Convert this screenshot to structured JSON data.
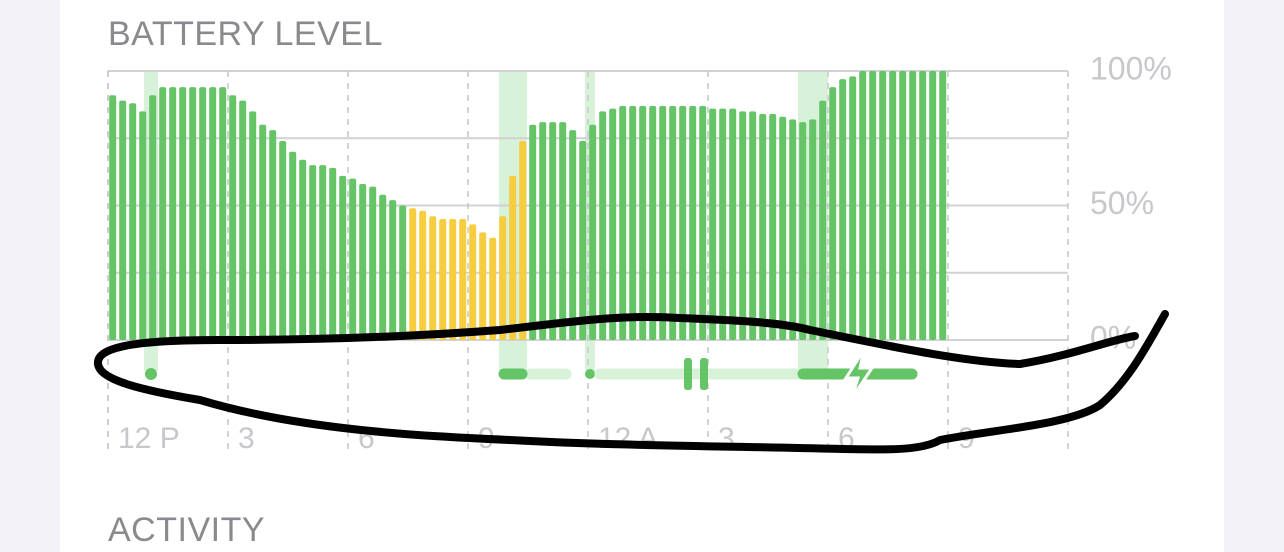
{
  "chart_data": {
    "type": "bar",
    "title": "BATTERY LEVEL",
    "next_section": "ACTIVITY",
    "x": [
      0,
      1,
      2,
      3,
      4,
      5,
      6,
      7,
      8,
      9,
      10,
      11,
      12,
      13,
      14,
      15,
      16,
      17,
      18,
      19,
      20,
      21,
      22,
      23,
      24,
      25,
      26,
      27,
      28,
      29,
      30,
      31,
      32,
      33,
      34,
      35,
      36,
      37,
      38,
      39,
      40,
      41,
      42,
      43,
      44,
      45,
      46,
      47,
      48,
      49,
      50,
      51,
      52,
      53,
      54,
      55,
      56,
      57,
      58,
      59,
      60,
      61,
      62,
      63,
      64,
      65,
      66,
      67,
      68,
      69,
      70,
      71,
      72,
      73,
      74,
      75,
      76,
      77,
      78,
      79,
      80,
      81,
      82,
      83
    ],
    "values": [
      91,
      89,
      88,
      85,
      91,
      94,
      94,
      94,
      94,
      94,
      94,
      94,
      91,
      89,
      85,
      80,
      78,
      74,
      70,
      67,
      65,
      65,
      64,
      61,
      60,
      58,
      57,
      54,
      52,
      50,
      49,
      48,
      46,
      45,
      45,
      45,
      43,
      40,
      38,
      46,
      61,
      74,
      80,
      81,
      81,
      81,
      78,
      74,
      80,
      85,
      86,
      87,
      87,
      87,
      87,
      87,
      87,
      87,
      87,
      87,
      86,
      86,
      86,
      85,
      85,
      84,
      84,
      83,
      82,
      81,
      82,
      89,
      94,
      97,
      98,
      100,
      100,
      100,
      100,
      100,
      100,
      100,
      100,
      100
    ],
    "colors": [
      "#65c466",
      "#65c466",
      "#65c466",
      "#65c466",
      "#65c466",
      "#65c466",
      "#65c466",
      "#65c466",
      "#65c466",
      "#65c466",
      "#65c466",
      "#65c466",
      "#65c466",
      "#65c466",
      "#65c466",
      "#65c466",
      "#65c466",
      "#65c466",
      "#65c466",
      "#65c466",
      "#65c466",
      "#65c466",
      "#65c466",
      "#65c466",
      "#65c466",
      "#65c466",
      "#65c466",
      "#65c466",
      "#65c466",
      "#65c466",
      "#f6cd3e",
      "#f6cd3e",
      "#f6cd3e",
      "#f6cd3e",
      "#f6cd3e",
      "#f6cd3e",
      "#f6cd3e",
      "#f6cd3e",
      "#f6cd3e",
      "#f6cd3e",
      "#f6cd3e",
      "#f6cd3e",
      "#65c466",
      "#65c466",
      "#65c466",
      "#65c466",
      "#65c466",
      "#65c466",
      "#65c466",
      "#65c466",
      "#65c466",
      "#65c466",
      "#65c466",
      "#65c466",
      "#65c466",
      "#65c466",
      "#65c466",
      "#65c466",
      "#65c466",
      "#65c466",
      "#65c466",
      "#65c466",
      "#65c466",
      "#65c466",
      "#65c466",
      "#65c466",
      "#65c466",
      "#65c466",
      "#65c466",
      "#65c466",
      "#65c466",
      "#65c466",
      "#65c466",
      "#65c466",
      "#65c466",
      "#65c466",
      "#65c466",
      "#65c466",
      "#65c466",
      "#65c466",
      "#65c466",
      "#65c466",
      "#65c466",
      "#65c466"
    ],
    "xlim": [
      0,
      96
    ],
    "xticks": [
      {
        "value": 0,
        "label": "12 P"
      },
      {
        "value": 12,
        "label": "3"
      },
      {
        "value": 24,
        "label": "6"
      },
      {
        "value": 36,
        "label": "9"
      },
      {
        "value": 48,
        "label": "12 A"
      },
      {
        "value": 60,
        "label": "3"
      },
      {
        "value": 72,
        "label": "6"
      },
      {
        "value": 84,
        "label": "9"
      }
    ],
    "ylim": [
      0,
      100
    ],
    "yticks": [
      {
        "value": 0,
        "label": "0%"
      },
      {
        "value": 50,
        "label": "50%"
      },
      {
        "value": 100,
        "label": "100%"
      }
    ],
    "yminor": [
      25,
      75
    ],
    "grid": true
  }
}
